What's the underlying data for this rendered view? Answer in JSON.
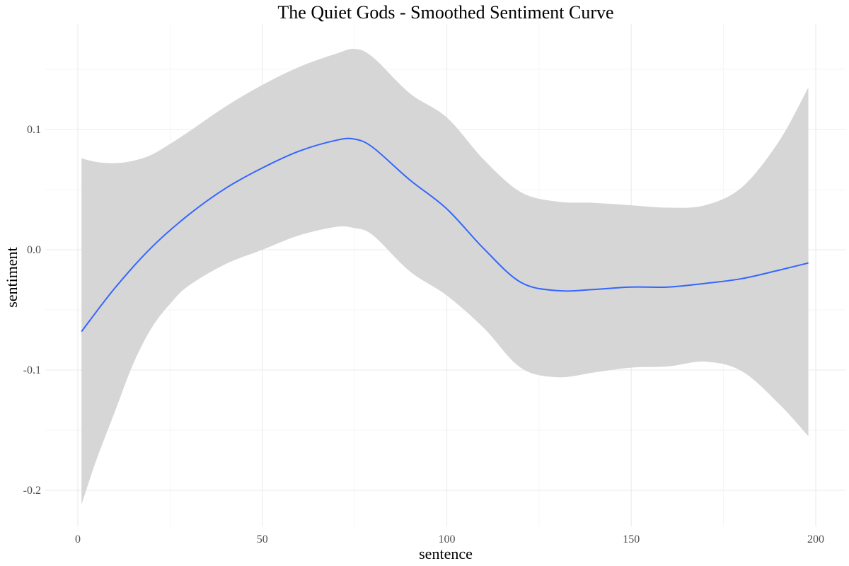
{
  "chart_data": {
    "type": "line",
    "title": "The Quiet Gods - Smoothed Sentiment Curve",
    "xlabel": "sentence",
    "ylabel": "sentiment",
    "xlim": [
      1,
      198
    ],
    "ylim": [
      -0.215,
      0.167
    ],
    "x_ticks": [
      0,
      50,
      100,
      150,
      200
    ],
    "x_tick_labels": [
      "0",
      "50",
      "100",
      "150",
      "200"
    ],
    "x_minor_ticks": [
      25,
      75,
      125,
      175
    ],
    "y_ticks": [
      -0.2,
      -0.1,
      0.0,
      0.1
    ],
    "y_tick_labels": [
      "-0.2",
      "-0.1",
      "0.0",
      "0.1"
    ],
    "y_minor_ticks": [
      -0.15,
      -0.05,
      0.05,
      0.15
    ],
    "grid": true,
    "legend": "none",
    "colors": {
      "line": "#3366FF",
      "band": "#d6d6d6",
      "gridMajor": "#ebebeb",
      "gridMinor": "#f3f3f3"
    },
    "series": [
      {
        "x": [
          1,
          10,
          20,
          30,
          40,
          50,
          60,
          70,
          75,
          80,
          90,
          100,
          110,
          120,
          130,
          140,
          150,
          160,
          170,
          180,
          190,
          198
        ],
        "y": [
          -0.068,
          -0.032,
          0.002,
          0.029,
          0.051,
          0.068,
          0.082,
          0.091,
          0.092,
          0.085,
          0.058,
          0.034,
          0.001,
          -0.027,
          -0.034,
          -0.033,
          -0.031,
          -0.031,
          -0.028,
          -0.024,
          -0.017,
          -0.011
        ]
      }
    ],
    "confidence_band": {
      "x": [
        1,
        5,
        10,
        15,
        20,
        25,
        30,
        40,
        50,
        60,
        70,
        75,
        80,
        90,
        100,
        110,
        120,
        130,
        140,
        150,
        160,
        170,
        180,
        190,
        198
      ],
      "lower": [
        -0.212,
        -0.175,
        -0.135,
        -0.095,
        -0.065,
        -0.045,
        -0.03,
        -0.012,
        0.0,
        0.012,
        0.019,
        0.018,
        0.012,
        -0.018,
        -0.038,
        -0.065,
        -0.098,
        -0.106,
        -0.102,
        -0.098,
        -0.097,
        -0.093,
        -0.101,
        -0.128,
        -0.155
      ],
      "upper": [
        0.076,
        0.073,
        0.072,
        0.074,
        0.079,
        0.088,
        0.098,
        0.119,
        0.137,
        0.152,
        0.163,
        0.167,
        0.16,
        0.13,
        0.11,
        0.075,
        0.048,
        0.04,
        0.039,
        0.037,
        0.035,
        0.037,
        0.052,
        0.09,
        0.135
      ]
    }
  }
}
